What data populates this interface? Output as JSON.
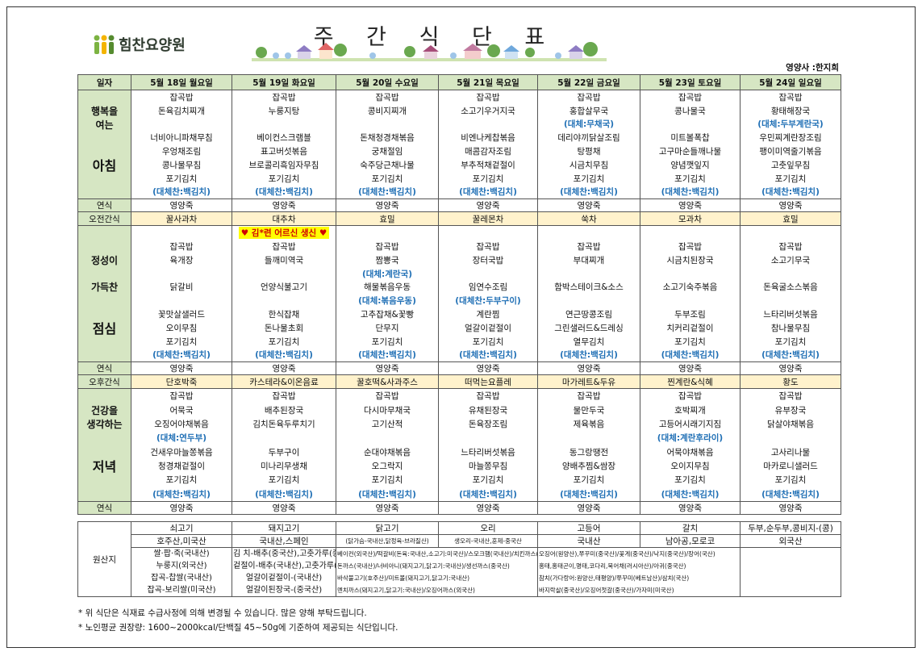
{
  "header": {
    "logo": "힘찬요양원",
    "title": "주 간 식 단 표",
    "dietitian": "영양사 :한지희"
  },
  "table": {
    "corner": "일자",
    "days": [
      "5월 18일 월요일",
      "5월 19일 화요일",
      "5월 20일 수요일",
      "5월 21일 목요일",
      "5월 22일 금요일",
      "5월 23일 토요일",
      "5월 24일 일요일"
    ],
    "rows": [
      {
        "kind": "meal",
        "label_top": [
          "행복을",
          "여는"
        ],
        "label_main": "아침",
        "cells": [
          [
            "잡곡밥",
            "돈육김치찌개",
            null,
            "너비아니파채무침",
            "우엉채조림",
            "콩나물무침",
            "포기김치",
            "(대체찬:백김치)"
          ],
          [
            "잡곡밥",
            "누룽지탕",
            null,
            "베이컨스크램블",
            "표고버섯볶음",
            "브로콜리흑임자무침",
            "포기김치",
            "(대체찬:백김치)"
          ],
          [
            "잡곡밥",
            "콩비지찌개",
            null,
            "돈채청경채볶음",
            "궁채절임",
            "숙주당근채나물",
            "포기김치",
            "(대체찬:백김치)"
          ],
          [
            "잡곡밥",
            "소고기우거지국",
            null,
            "비엔나케찹볶음",
            "매콤감자조림",
            "부추적채겉절이",
            "포기김치",
            "(대체찬:백김치)"
          ],
          [
            "잡곡밥",
            "홍합살무국",
            "(대체:무채국)",
            "데리야끼닭살조림",
            "탕평채",
            "시금치무침",
            "포기김치",
            "(대체찬:백김치)"
          ],
          [
            "잡곡밥",
            "콩나물국",
            null,
            "미트볼폭찹",
            "고구마순들깨나물",
            "양념깻잎지",
            "포기김치",
            "(대체찬:백김치)"
          ],
          [
            "잡곡밥",
            "황태해장국",
            "(대체:두부계란국)",
            "우민찌계란장조림",
            "팽이미역줄기볶음",
            "고춧잎무침",
            "포기김치",
            "(대체찬:백김치)"
          ]
        ]
      },
      {
        "kind": "plain",
        "label": "연식",
        "cells": [
          "영양죽",
          "영양죽",
          "영양죽",
          "영양죽",
          "영양죽",
          "영양죽",
          "영양죽"
        ]
      },
      {
        "kind": "snack",
        "label": "오전간식",
        "cells": [
          "꿀사과차",
          "대추차",
          "효밀",
          "꿀레몬차",
          "쑥차",
          "모과차",
          "효밀"
        ]
      },
      {
        "kind": "meal",
        "label_top": [
          "정성이",
          "가득찬"
        ],
        "label_main": "점심",
        "notes": [
          null,
          "♥ 김*련 어르신 생신 ♥",
          null,
          null,
          null,
          null,
          null
        ],
        "cells": [
          [
            "잡곡밥",
            "육개장",
            null,
            "닭갈비",
            null,
            "꽃맛살샐러드",
            "오이무침",
            "포기김치",
            "(대체찬:백김치)"
          ],
          [
            "잡곡밥",
            "들깨미역국",
            null,
            "언양식불고기",
            null,
            "한식잡채",
            "돈나물초회",
            "포기김치",
            "(대체찬:백김치)"
          ],
          [
            "잡곡밥",
            "짬뽕국",
            "(대체:계란국)",
            "해물볶음우동",
            "(대체:볶음우동)",
            "고추잡채&꽃빵",
            "단무지",
            "포기김치",
            "(대체찬:백김치)"
          ],
          [
            "잡곡밥",
            "장터국밥",
            null,
            "임연수조림",
            "(대체찬:두부구이)",
            "계란찜",
            "얼갈이겉절이",
            "포기김치",
            "(대체찬:백김치)"
          ],
          [
            "잡곡밥",
            "부대찌개",
            null,
            "함박스테이크&소스",
            null,
            "연근땅콩조림",
            "그린샐러드&드레싱",
            "열무김치",
            "(대체찬:백김치)"
          ],
          [
            "잡곡밥",
            "시금치된장국",
            null,
            "소고기숙주볶음",
            null,
            "두부조림",
            "치커리겉절이",
            "포기김치",
            "(대체찬:백김치)"
          ],
          [
            "잡곡밥",
            "소고기무국",
            null,
            "돈육굴소스볶음",
            null,
            "느타리버섯볶음",
            "참나물무침",
            "포기김치",
            "(대체찬:백김치)"
          ]
        ]
      },
      {
        "kind": "plain",
        "label": "연식",
        "cells": [
          "영양죽",
          "영양죽",
          "영양죽",
          "영양죽",
          "영양죽",
          "영양죽",
          "영양죽"
        ]
      },
      {
        "kind": "snack",
        "label": "오후간식",
        "cells": [
          "단호박죽",
          "카스테라&이온음료",
          "꿀호떡&사과주스",
          "떠먹는요플레",
          "마가레트&두유",
          "찐계란&식혜",
          "황도"
        ]
      },
      {
        "kind": "meal",
        "label_top": [
          "건강을",
          "생각하는"
        ],
        "label_main": "저녁",
        "cells": [
          [
            "잡곡밥",
            "어묵국",
            "오징어야채볶음",
            "(대체:연두부)",
            "건새우마늘쫑볶음",
            "청경채겉절이",
            "포기김치",
            "(대체찬:백김치)"
          ],
          [
            "잡곡밥",
            "배추된장국",
            "김치돈육두루치기",
            null,
            "두부구이",
            "미나리무생채",
            "포기김치",
            "(대체찬:백김치)"
          ],
          [
            "잡곡밥",
            "다시마무채국",
            "고기산적",
            null,
            "순대야채볶음",
            "오그락지",
            "포기김치",
            "(대체찬:백김치)"
          ],
          [
            "잡곡밥",
            "유채된장국",
            "돈육장조림",
            null,
            "느타리버섯볶음",
            "마늘쫑무침",
            "포기김치",
            "(대체찬:백김치)"
          ],
          [
            "잡곡밥",
            "물만두국",
            "제육볶음",
            null,
            "동그랑땡전",
            "양배추찜&쌈장",
            "포기김치",
            "(대체찬:백김치)"
          ],
          [
            "잡곡밥",
            "호박찌개",
            "고등어시래기지짐",
            "(대체:계란후라이)",
            "어묵야채볶음",
            "오이지무침",
            "포기김치",
            "(대체찬:백김치)"
          ],
          [
            "잡곡밥",
            "유부장국",
            "닭살야채볶음",
            null,
            "고사리나물",
            "마카로니샐러드",
            "포기김치",
            "(대체찬:백김치)"
          ]
        ]
      },
      {
        "kind": "plain",
        "label": "연식",
        "cells": [
          "영양죽",
          "영양죽",
          "영양죽",
          "영양죽",
          "영양죽",
          "영양죽",
          "영양죽"
        ]
      }
    ]
  },
  "origin": {
    "label": "원산지",
    "items": [
      "쇠고기",
      "돼지고기",
      "닭고기",
      "오리",
      "고등어",
      "갈치",
      "두부,순두부,콩비지-(콩)"
    ],
    "countries": [
      "호주산,미국산",
      "국내산,스페인",
      "(닭가슴-국내산,닭정육-브라질산)",
      "생오리-국내산,훈제-중국산",
      "국내산",
      "남아공,모로코",
      "외국산"
    ],
    "details": [
      [
        "쌀·팝·죽(국내산)",
        "누룽지(외국산)",
        "잡곡-찹쌀(국내산)",
        "잡곡-보리쌀(미국산)"
      ],
      [
        "김 치-배추(중국산),고춧가루(중국산)",
        "겉절이-배추(국내산),고춧가루(중국산)",
        "얼갈이겉절이-(국내산)",
        "얼갈이된장국-(중국산)"
      ],
      [
        "베이컨(외국산)/떡갈비(돈육:국내산,소고기:미국산)/스모크햄(국내산)/치킨까스(국내산)",
        "돈까스(국내산)/너비아니(돼지고기,닭고기:국내산)/생선까스(중국산)",
        "바삭불고기(호주산)/미트볼(돼지고기,닭고기:국내산)",
        "멘치까스(돼지고기,닭고기:국내산)/오징어까스(외국산)"
      ],
      [
        "오징어(원양산),쭈꾸미(중국산)/꽃게(중국산)/낙지(중국산)/장어(국산)",
        "홍태,홍태곤이,명태,코다리,북어채(러시아산)/아귀(중국산)",
        "참치(가다랑어:원양산,태평양)/쭈꾸미(베트남산)/삼치(국산)",
        "바지락살(중국산)/오징어젓갈(중국산)/가자미(미국산)"
      ]
    ]
  },
  "notes": [
    "* 위 식단은 식재료 수급사정에 의해 변경될 수 있습니다. 많은 양해 부탁드립니다.",
    "* 노인평균 권장량: 1600~2000kcal/단백질 45~50g에 기준하여 제공되는 식단입니다."
  ]
}
